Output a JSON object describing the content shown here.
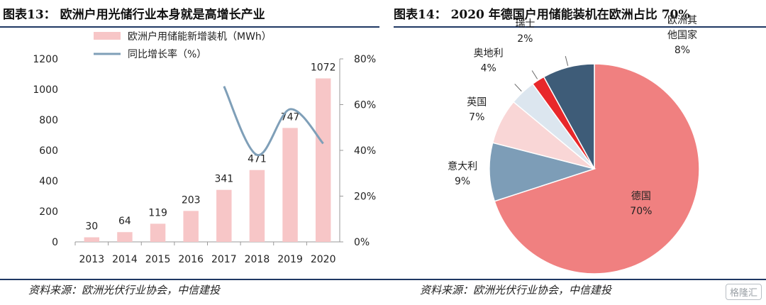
{
  "left_figure": {
    "title": "图表13： 欧洲户用光储行业本身就是高增长产业",
    "source": "资料来源：欧洲光伏行业协会，中信建投"
  },
  "right_figure": {
    "title": "图表14： 2020 年德国户用储能装机在欧洲占比 70%",
    "source": "资料来源：欧洲光伏行业协会，中信建投"
  },
  "watermark": "格隆汇",
  "chart_data": [
    {
      "type": "bar",
      "categories": [
        "2013",
        "2014",
        "2015",
        "2016",
        "2017",
        "2018",
        "2019",
        "2020"
      ],
      "series": [
        {
          "name": "欧洲户用储能新增装机（MWh）",
          "type": "bar",
          "axis": "left",
          "values": [
            30,
            64,
            119,
            203,
            341,
            471,
            747,
            1072
          ],
          "color": "#f7c6c7"
        },
        {
          "name": "同比增长率（%）",
          "type": "line",
          "axis": "right",
          "values": [
            null,
            null,
            null,
            null,
            68,
            38,
            58,
            43
          ],
          "color": "#7f9fb8"
        }
      ],
      "ylim": [
        0,
        1200
      ],
      "yticks": [
        "0",
        "200",
        "400",
        "600",
        "800",
        "1000",
        "1200"
      ],
      "y2lim": [
        0,
        80
      ],
      "y2ticks": [
        "0%",
        "20%",
        "40%",
        "60%",
        "80%"
      ],
      "data_labels": [
        "30",
        "64",
        "119",
        "203",
        "341",
        "471",
        "747",
        "1072"
      ],
      "legend_position": "top"
    },
    {
      "type": "pie",
      "slices": [
        {
          "label": "德国",
          "value": 70,
          "value_label": "70%",
          "color": "#f08080"
        },
        {
          "label": "意大利",
          "value": 9,
          "value_label": "9%",
          "color": "#7d9db7"
        },
        {
          "label": "英国",
          "value": 7,
          "value_label": "7%",
          "color": "#f9d6d6"
        },
        {
          "label": "奥地利",
          "value": 4,
          "value_label": "4%",
          "color": "#dce6ef"
        },
        {
          "label": "瑞士",
          "value": 2,
          "value_label": "2%",
          "color": "#e8282b"
        },
        {
          "label": "欧洲其他国家",
          "label_lines": [
            "欧洲其",
            "他国家"
          ],
          "value": 8,
          "value_label": "8%",
          "color": "#3e5c78"
        }
      ]
    }
  ]
}
